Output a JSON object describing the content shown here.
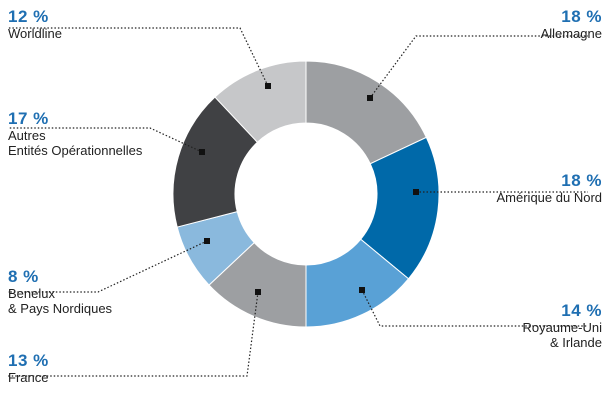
{
  "chart_data": {
    "type": "pie",
    "donut": true,
    "title": "",
    "unit": "%",
    "slices": [
      {
        "label": "Allemagne",
        "value": 18,
        "pct_text": "18 %",
        "color": "#9d9fa2"
      },
      {
        "label": "Amérique du Nord",
        "value": 18,
        "pct_text": "18 %",
        "color": "#0069a9"
      },
      {
        "label": "Royaume-Uni & Irlande",
        "lines": [
          "Royaume-Uni",
          "& Irlande"
        ],
        "value": 14,
        "pct_text": "14 %",
        "color": "#59a1d6"
      },
      {
        "label": "France",
        "value": 13,
        "pct_text": "13 %",
        "color": "#9d9fa2"
      },
      {
        "label": "Benelux & Pays Nordiques",
        "lines": [
          "Benelux",
          "& Pays Nordiques"
        ],
        "value": 8,
        "pct_text": "8 %",
        "color": "#8ab9dd"
      },
      {
        "label": "Autres Entités Opérationnelles",
        "lines": [
          "Autres",
          "Entités Opérationnelles"
        ],
        "value": 17,
        "pct_text": "17 %",
        "color": "#404144"
      },
      {
        "label": "Worldline",
        "value": 12,
        "pct_text": "12 %",
        "color": "#c6c7c9"
      }
    ]
  }
}
